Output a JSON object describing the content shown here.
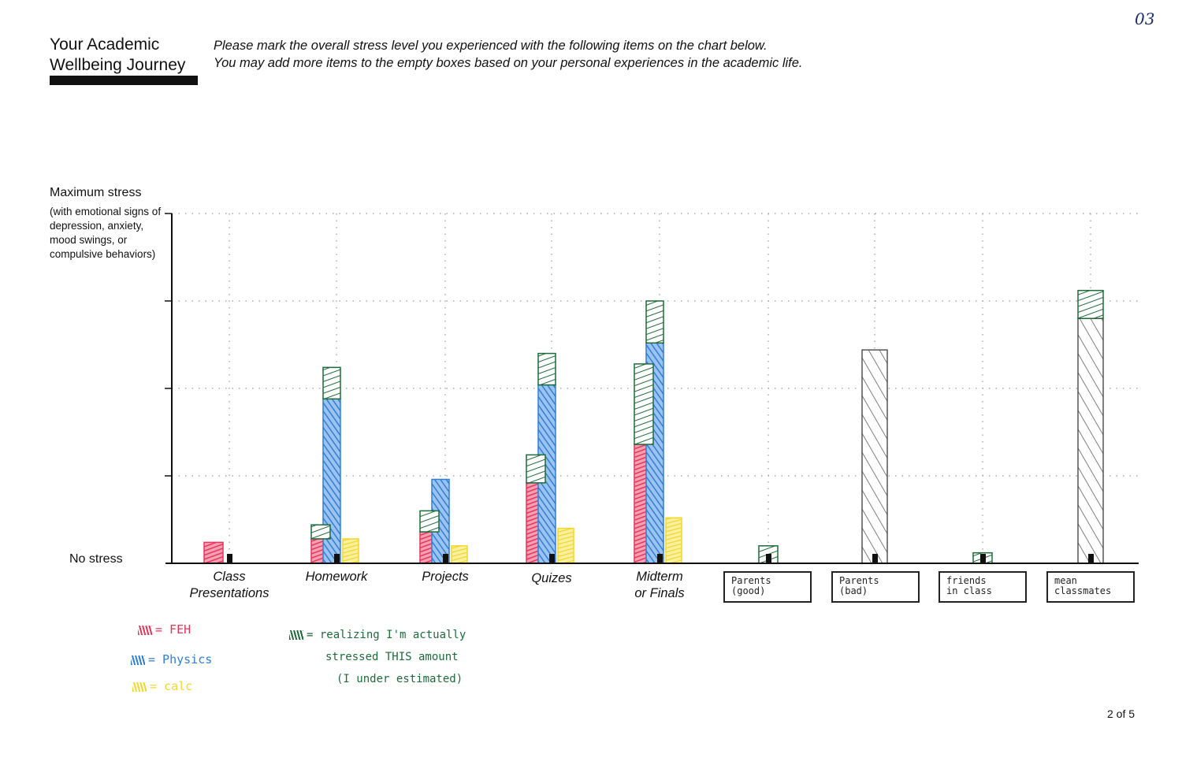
{
  "page_number_hand": "03",
  "title_line1": "Your Academic",
  "title_line2": "Wellbeing Journey",
  "instructions_line1": "Please mark the overall stress level you experienced with the following items on the chart below.",
  "instructions_line2": "You may add more items to the empty boxes based on your personal experiences in the academic life.",
  "y_axis": {
    "max_label": "Maximum stress",
    "max_note": "(with emotional signs of depression, anxiety, mood swings, or compulsive behaviors)",
    "min_label": "No stress"
  },
  "colors": {
    "feh": "#e8355a",
    "physics": "#2f7fd6",
    "calc": "#f2d72a",
    "realizing": "#1e6b3a",
    "other": "#555555"
  },
  "chart_data": {
    "type": "bar",
    "ylim": [
      0,
      100
    ],
    "y_ticks": [
      25,
      50,
      75,
      100
    ],
    "grid": true,
    "categories": [
      "Class\nPresentations",
      "Homework",
      "Projects",
      "Quizes",
      "Midterm\nor Finals",
      "Parents\n(good)",
      "Parents\n(bad)",
      "friends\nin class",
      "mean\nclassmates"
    ],
    "handwritten_categories": [
      false,
      false,
      false,
      false,
      false,
      true,
      true,
      true,
      true
    ],
    "series": [
      {
        "name": "FEH",
        "values": [
          6,
          7,
          9,
          23,
          34,
          null,
          null,
          null,
          null
        ]
      },
      {
        "name": "physics",
        "values": [
          null,
          47,
          24,
          51,
          63,
          null,
          null,
          null,
          null
        ]
      },
      {
        "name": "calc",
        "values": [
          null,
          7,
          5,
          10,
          13,
          null,
          null,
          null,
          null
        ]
      },
      {
        "name": "other",
        "values": [
          null,
          null,
          null,
          null,
          null,
          null,
          61,
          null,
          70
        ]
      }
    ],
    "realizing_overlay": [
      {
        "category": 1,
        "bar": "FEH",
        "from": 7,
        "to": 11
      },
      {
        "category": 1,
        "bar": "physics",
        "from": 47,
        "to": 56
      },
      {
        "category": 2,
        "bar": "FEH",
        "from": 9,
        "to": 15
      },
      {
        "category": 3,
        "bar": "FEH",
        "from": 23,
        "to": 31
      },
      {
        "category": 3,
        "bar": "physics",
        "from": 51,
        "to": 60
      },
      {
        "category": 4,
        "bar": "FEH",
        "from": 34,
        "to": 57
      },
      {
        "category": 4,
        "bar": "physics",
        "from": 63,
        "to": 75
      },
      {
        "category": 5,
        "bar": "other",
        "from": 0,
        "to": 5
      },
      {
        "category": 7,
        "bar": "other",
        "from": 0,
        "to": 3
      },
      {
        "category": 8,
        "bar": "other",
        "from": 70,
        "to": 78
      }
    ]
  },
  "legend": [
    {
      "key": "feh",
      "text": "= FEH"
    },
    {
      "key": "physics",
      "text": "= Physics"
    },
    {
      "key": "calc",
      "text": "= calc"
    }
  ],
  "note": {
    "line1": "= realizing I'm actually",
    "line2": "stressed THIS amount",
    "line3": "(I under estimated)"
  },
  "footer": "2 of 5"
}
